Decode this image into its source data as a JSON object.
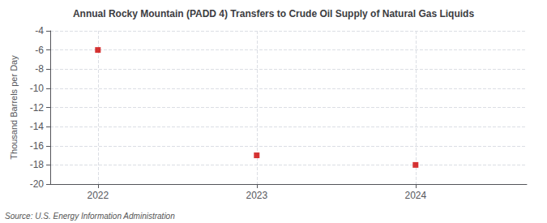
{
  "chart_data": {
    "type": "scatter",
    "title": "Annual Rocky Mountain (PADD 4) Transfers to Crude Oil Supply of Natural Gas Liquids",
    "ylabel": "Thousand Barrels per Day",
    "annotation": "Source: U.S. Energy Information Administration",
    "x": [
      2022,
      2023,
      2024
    ],
    "values": [
      -6,
      -17,
      -18
    ],
    "color": "#cc0000",
    "marker": "square",
    "xlim": [
      2021.7,
      2024.7
    ],
    "xticks": [
      2022,
      2023,
      2024
    ],
    "ylim": [
      -20,
      -4
    ],
    "yticks": [
      -4,
      -6,
      -8,
      -10,
      -12,
      -14,
      -16,
      -18,
      -20
    ],
    "grid": true
  }
}
